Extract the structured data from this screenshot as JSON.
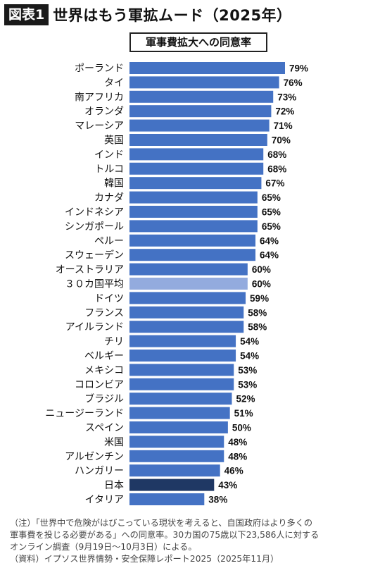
{
  "header": {
    "badge": "図表1",
    "title": "世界はもう軍拡ムード（2025年）"
  },
  "chart_data": {
    "type": "bar",
    "orientation": "horizontal",
    "title": "軍事費拡大への同意率",
    "categories": [
      "ポーランド",
      "タイ",
      "南アフリカ",
      "オランダ",
      "マレーシア",
      "英国",
      "インド",
      "トルコ",
      "韓国",
      "カナダ",
      "インドネシア",
      "シンガポール",
      "ペルー",
      "スウェーデン",
      "オーストラリア",
      "３０カ国平均",
      "ドイツ",
      "フランス",
      "アイルランド",
      "チリ",
      "ベルギー",
      "メキシコ",
      "コロンビア",
      "ブラジル",
      "ニュージーランド",
      "スペイン",
      "米国",
      "アルゼンチン",
      "ハンガリー",
      "日本",
      "イタリア"
    ],
    "values": [
      79,
      76,
      73,
      72,
      71,
      70,
      68,
      68,
      67,
      65,
      65,
      65,
      64,
      64,
      60,
      60,
      59,
      58,
      58,
      54,
      54,
      53,
      53,
      52,
      51,
      50,
      48,
      48,
      46,
      43,
      38
    ],
    "value_labels": [
      "79%",
      "76%",
      "73%",
      "72%",
      "71%",
      "70%",
      "68%",
      "68%",
      "67%",
      "65%",
      "65%",
      "65%",
      "64%",
      "64%",
      "60%",
      "60%",
      "59%",
      "58%",
      "58%",
      "54%",
      "54%",
      "53%",
      "53%",
      "52%",
      "51%",
      "50%",
      "48%",
      "48%",
      "46%",
      "43%",
      "38%"
    ],
    "unit": "%",
    "colors": {
      "default": "#4472C4",
      "average": "#93ABDE",
      "highlight": "#1F3864"
    },
    "average_category": "３０カ国平均",
    "highlight_category": "日本"
  },
  "notes": {
    "line1": "（注）「世界中で危険がはびこっている現状を考えると、自国政府はより多くの",
    "line2": "軍事費を投じる必要がある」への同意率。30カ国の75歳以下23,586人に対する",
    "line3": "オンライン調査（9月19日〜10月3日）による。",
    "line4": "（資料）イプソス世界情勢・安全保障レポート2025（2025年11月）"
  }
}
